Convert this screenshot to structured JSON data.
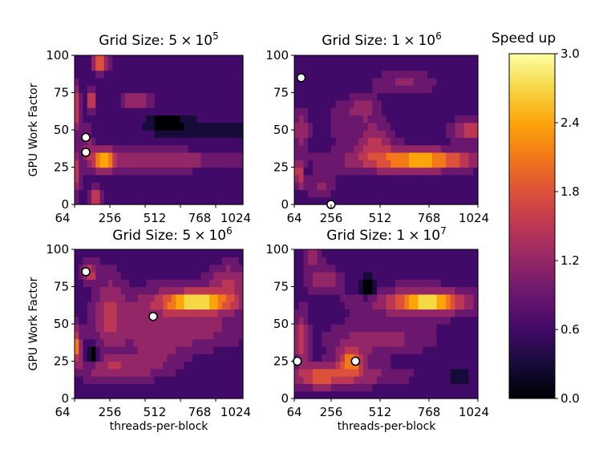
{
  "chart_data": {
    "type": "heatmap",
    "colorbar": {
      "title": "Speed up",
      "min": 0.0,
      "max": 3.0,
      "ticks": [
        "0.0",
        "0.6",
        "1.2",
        "1.8",
        "2.4",
        "3.0"
      ],
      "colormap": "inferno"
    },
    "xlabel": "threads-per-block",
    "ylabel": "GPU Work Factor",
    "xlim": [
      64,
      1024
    ],
    "ylim": [
      0,
      100
    ],
    "xticks": [
      "64",
      "256",
      "512",
      "768",
      "1024"
    ],
    "yticks": [
      "0",
      "25",
      "50",
      "75",
      "100"
    ],
    "panels": [
      {
        "title_text": "Grid Size: ",
        "mantissa": "5",
        "times": "×",
        "base": "10",
        "exponent": "5",
        "markers": [
          {
            "x": 128,
            "y": 45
          },
          {
            "x": 128,
            "y": 35
          }
        ],
        "blobs": [
          {
            "x": 210,
            "y": 95,
            "v": 2.2,
            "sx": 30,
            "sy": 4
          },
          {
            "x": 160,
            "y": 70,
            "v": 2.1,
            "sx": 14,
            "sy": 5
          },
          {
            "x": 420,
            "y": 70,
            "v": 1.5,
            "sx": 60,
            "sy": 4
          },
          {
            "x": 230,
            "y": 30,
            "v": 2.3,
            "sx": 40,
            "sy": 5
          },
          {
            "x": 550,
            "y": 30,
            "v": 1.3,
            "sx": 300,
            "sy": 5
          },
          {
            "x": 75,
            "y": 65,
            "v": 1.6,
            "sx": 15,
            "sy": 12
          },
          {
            "x": 75,
            "y": 20,
            "v": 1.6,
            "sx": 15,
            "sy": 10
          },
          {
            "x": 180,
            "y": 5,
            "v": 1.7,
            "sx": 25,
            "sy": 5
          },
          {
            "x": 140,
            "y": 40,
            "v": 1.1,
            "sx": 25,
            "sy": 10
          },
          {
            "x": 600,
            "y": 55,
            "v": -0.5,
            "sx": 60,
            "sy": 3
          },
          {
            "x": 800,
            "y": 50,
            "v": 0.3,
            "sx": 200,
            "sy": 5
          }
        ]
      },
      {
        "title_text": "Grid Size: ",
        "mantissa": "1",
        "times": "×",
        "base": "10",
        "exponent": "6",
        "markers": [
          {
            "x": 100,
            "y": 85
          },
          {
            "x": 256,
            "y": 0
          }
        ],
        "blobs": [
          {
            "x": 768,
            "y": 30,
            "v": 2.0,
            "sx": 180,
            "sy": 4
          },
          {
            "x": 580,
            "y": 30,
            "v": 1.3,
            "sx": 250,
            "sy": 7
          },
          {
            "x": 480,
            "y": 45,
            "v": 1.3,
            "sx": 70,
            "sy": 8
          },
          {
            "x": 980,
            "y": 50,
            "v": 1.6,
            "sx": 70,
            "sy": 5
          },
          {
            "x": 420,
            "y": 65,
            "v": 1.3,
            "sx": 60,
            "sy": 6
          },
          {
            "x": 90,
            "y": 20,
            "v": 1.9,
            "sx": 14,
            "sy": 6
          },
          {
            "x": 100,
            "y": 50,
            "v": 1.3,
            "sx": 30,
            "sy": 10
          },
          {
            "x": 200,
            "y": 12,
            "v": 1.1,
            "sx": 50,
            "sy": 6
          },
          {
            "x": 640,
            "y": 82,
            "v": 1.1,
            "sx": 120,
            "sy": 5
          },
          {
            "x": 300,
            "y": 55,
            "v": 1.0,
            "sx": 40,
            "sy": 8
          }
        ]
      },
      {
        "title_text": "Grid Size: ",
        "mantissa": "5",
        "times": "×",
        "base": "10",
        "exponent": "6",
        "markers": [
          {
            "x": 128,
            "y": 85
          },
          {
            "x": 512,
            "y": 55
          }
        ],
        "blobs": [
          {
            "x": 768,
            "y": 65,
            "v": 2.3,
            "sx": 130,
            "sy": 4
          },
          {
            "x": 700,
            "y": 65,
            "v": 1.3,
            "sx": 260,
            "sy": 9
          },
          {
            "x": 620,
            "y": 45,
            "v": 1.2,
            "sx": 300,
            "sy": 9
          },
          {
            "x": 80,
            "y": 35,
            "v": 2.0,
            "sx": 14,
            "sy": 8
          },
          {
            "x": 150,
            "y": 85,
            "v": 1.6,
            "sx": 30,
            "sy": 5
          },
          {
            "x": 950,
            "y": 80,
            "v": 1.3,
            "sx": 80,
            "sy": 8
          },
          {
            "x": 260,
            "y": 60,
            "v": 1.2,
            "sx": 60,
            "sy": 20
          },
          {
            "x": 300,
            "y": 20,
            "v": 1.3,
            "sx": 180,
            "sy": 6
          },
          {
            "x": 540,
            "y": 30,
            "v": 0.9,
            "sx": 120,
            "sy": 8
          },
          {
            "x": 170,
            "y": 30,
            "v": -0.6,
            "sx": 20,
            "sy": 4
          }
        ]
      },
      {
        "title_text": "Grid Size: ",
        "mantissa": "1",
        "times": "×",
        "base": "10",
        "exponent": "7",
        "markers": [
          {
            "x": 80,
            "y": 25
          },
          {
            "x": 384,
            "y": 25
          }
        ],
        "blobs": [
          {
            "x": 768,
            "y": 65,
            "v": 2.3,
            "sx": 110,
            "sy": 4
          },
          {
            "x": 700,
            "y": 65,
            "v": 1.3,
            "sx": 230,
            "sy": 8
          },
          {
            "x": 360,
            "y": 25,
            "v": 2.0,
            "sx": 50,
            "sy": 6
          },
          {
            "x": 200,
            "y": 15,
            "v": 1.5,
            "sx": 80,
            "sy": 6
          },
          {
            "x": 500,
            "y": 40,
            "v": 1.2,
            "sx": 200,
            "sy": 8
          },
          {
            "x": 100,
            "y": 40,
            "v": 1.5,
            "sx": 25,
            "sy": 14
          },
          {
            "x": 220,
            "y": 80,
            "v": 1.3,
            "sx": 60,
            "sy": 6
          },
          {
            "x": 160,
            "y": 95,
            "v": 1.2,
            "sx": 40,
            "sy": 5
          },
          {
            "x": 400,
            "y": 15,
            "v": 1.2,
            "sx": 200,
            "sy": 5
          },
          {
            "x": 450,
            "y": 75,
            "v": -0.8,
            "sx": 25,
            "sy": 4
          },
          {
            "x": 900,
            "y": 15,
            "v": 0.4,
            "sx": 120,
            "sy": 6
          }
        ]
      }
    ]
  }
}
